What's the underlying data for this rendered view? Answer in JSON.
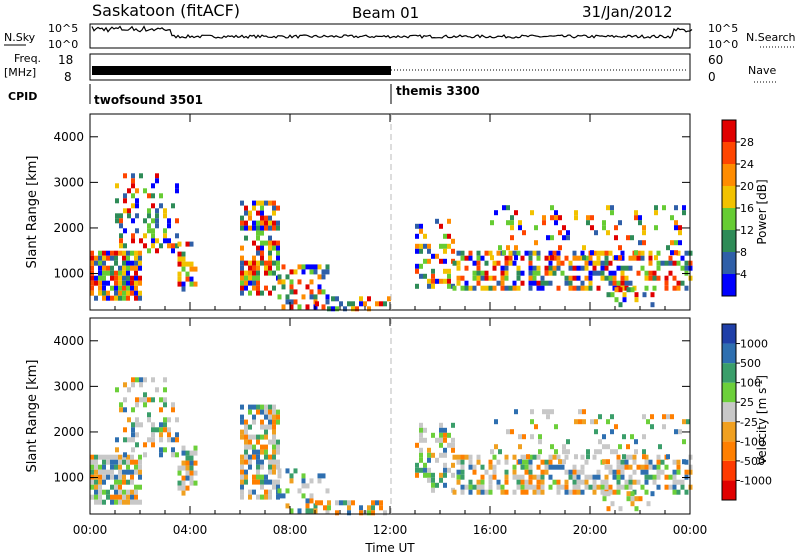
{
  "header": {
    "title": "Saskatoon (fitACF)",
    "beam": "Beam 01",
    "date": "31/Jan/2012"
  },
  "strip_panels": {
    "nsky": {
      "label": "N.Sky",
      "tick_hi": "10^5",
      "tick_lo": "10^0"
    },
    "nsearch": {
      "label": "N.Search",
      "tick_hi": "10^5",
      "tick_lo": "10^0"
    },
    "freq": {
      "label_line1": "Freq.",
      "label_line2": "[MHz]",
      "tick_hi": "18",
      "tick_lo": "8"
    },
    "nave": {
      "label": "Nave",
      "tick_hi": "60",
      "tick_lo": "0"
    },
    "cpid": {
      "label": "CPID",
      "modes": [
        {
          "name": "twofsound 3501",
          "start_hour": 0
        },
        {
          "name": "themis 3300",
          "start_hour": 12
        }
      ]
    }
  },
  "chart_data": [
    {
      "type": "heatmap",
      "name": "Power",
      "ylabel": "Slant Range [km]",
      "xlabel": "",
      "ylim": [
        200,
        4500
      ],
      "y_ticks": [
        "1000",
        "2000",
        "3000",
        "4000"
      ],
      "x_ticks": [],
      "colorbar_label": "Power [dB]",
      "colorbar_ticks": [
        "4",
        "8",
        "12",
        "16",
        "20",
        "24",
        "28"
      ],
      "colorbar_colors": [
        "#0000ff",
        "#2f5fa8",
        "#2e8b57",
        "#66cc33",
        "#f2c200",
        "#ff8c00",
        "#ff4500",
        "#e00000"
      ]
    },
    {
      "type": "heatmap",
      "name": "Velocity",
      "ylabel": "Slant Range [km]",
      "xlabel": "Time UT",
      "ylim": [
        200,
        4500
      ],
      "y_ticks": [
        "1000",
        "2000",
        "3000",
        "4000"
      ],
      "x_ticks": [
        "00:00",
        "04:00",
        "08:00",
        "12:00",
        "16:00",
        "20:00",
        "00:00"
      ],
      "colorbar_label": "Velocity [m s",
      "colorbar_label_sup": "-1",
      "colorbar_label_end": "]",
      "colorbar_ticks": [
        "1000",
        "500",
        "100",
        "25",
        "-25",
        "-100",
        "-500",
        "-1000"
      ],
      "colorbar_colors": [
        "#1f3fa8",
        "#2e6fb0",
        "#3a9e6a",
        "#6ccf3a",
        "#c8c8c8",
        "#f0a020",
        "#ff7f00",
        "#ff3a00",
        "#e00000"
      ]
    }
  ]
}
